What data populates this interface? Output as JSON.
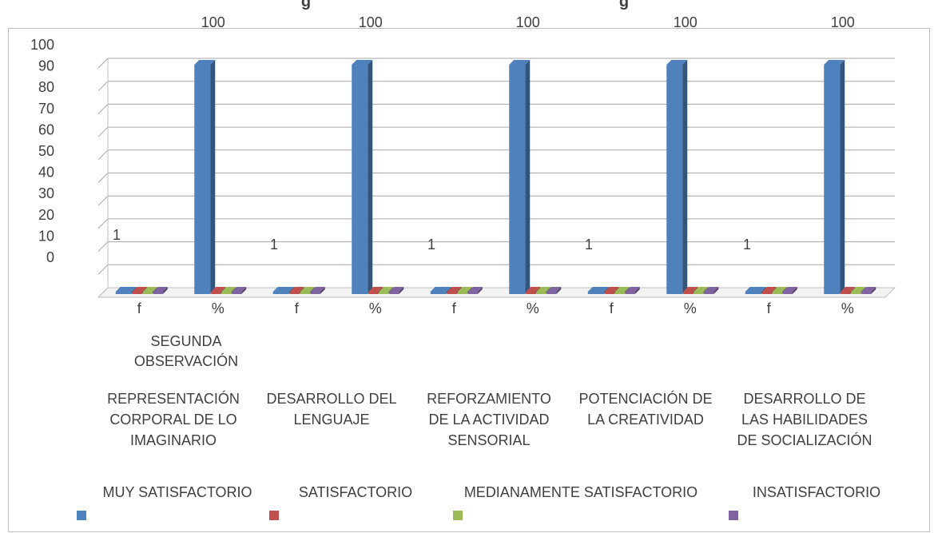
{
  "chart_data": {
    "type": "bar",
    "title": "",
    "title_visible_fragment": "g                              g",
    "ylim": [
      0,
      100
    ],
    "y_tick_labels": [
      "100",
      "90",
      "80",
      "70",
      "60",
      "50",
      "40",
      "30",
      "20",
      "10",
      "0"
    ],
    "top_labels": [
      "100",
      "100",
      "100",
      "100",
      "100"
    ],
    "groups": [
      {
        "label": "REPRESENTACIÓN CORPORAL DE LO IMAGINARIO",
        "label_lines": [
          "REPRESENTACIÓN",
          "CORPORAL DE LO",
          "IMAGINARIO"
        ]
      },
      {
        "label": "DESARROLLO DEL LENGUAJE",
        "label_lines": [
          "DESARROLLO DEL",
          "LENGUAJE"
        ]
      },
      {
        "label": "REFORZAMIENTO DE LA ACTIVIDAD SENSORIAL",
        "label_lines": [
          "REFORZAMIENTO",
          "DE LA ACTIVIDAD",
          "SENSORIAL"
        ]
      },
      {
        "label": "POTENCIACIÓN DE LA CREATIVIDAD",
        "label_lines": [
          "POTENCIACIÓN DE",
          "LA CREATIVIDAD"
        ]
      },
      {
        "label": "DESARROLLO DE LAS HABILIDADES DE SOCIALIZACIÓN",
        "label_lines": [
          "DESARROLLO    DE",
          "LAS    HABILIDADES",
          "DE SOCIALIZACIÓN"
        ]
      }
    ],
    "sub_categories": [
      "f",
      "%"
    ],
    "super_label_lines": [
      "SEGUNDA",
      "OBSERVACIÓN"
    ],
    "series": [
      {
        "name": "MUY SATISFACTORIO",
        "color": "#4F81BD",
        "values": [
          1,
          100,
          1,
          100,
          1,
          100,
          1,
          100,
          1,
          100
        ]
      },
      {
        "name": "SATISFACTORIO",
        "color": "#C0504D",
        "values": [
          0,
          0,
          0,
          0,
          0,
          0,
          0,
          0,
          0,
          0
        ]
      },
      {
        "name": "MEDIANAMENTE SATISFACTORIO",
        "color": "#9BBB59",
        "values": [
          0,
          0,
          0,
          0,
          0,
          0,
          0,
          0,
          0,
          0
        ]
      },
      {
        "name": "INSATISFACTORIO",
        "color": "#8064A2",
        "values": [
          0,
          0,
          0,
          0,
          0,
          0,
          0,
          0,
          0,
          0
        ]
      }
    ],
    "f_value_label": "1",
    "grid": true,
    "legend_position": "bottom",
    "style": "3d-clustered-column"
  }
}
